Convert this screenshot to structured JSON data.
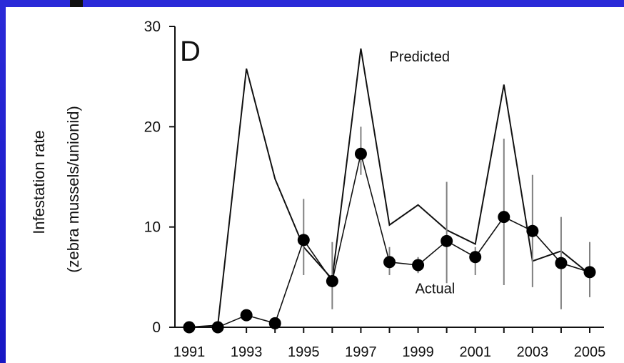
{
  "chart_data": {
    "type": "line",
    "panel_label": "D",
    "xlabel": "",
    "ylabel_line1": "Infestation rate",
    "ylabel_line2": "(zebra mussels/unionid)",
    "xlim": [
      1991,
      2005
    ],
    "ylim": [
      0,
      30
    ],
    "x_ticks": [
      1991,
      1992,
      1993,
      1994,
      1995,
      1996,
      1997,
      1998,
      1999,
      2000,
      2001,
      2002,
      2003,
      2004,
      2005
    ],
    "x_tick_labels": [
      "1991",
      "1993",
      "1995",
      "1997",
      "1999",
      "2001",
      "2003",
      "2005"
    ],
    "y_ticks": [
      0,
      10,
      20,
      30
    ],
    "y_tick_labels": [
      "0",
      "10",
      "20",
      "30"
    ],
    "grid": false,
    "series": [
      {
        "name": "Predicted",
        "style": "line",
        "x": [
          1991,
          1992,
          1993,
          1994,
          1995,
          1996,
          1997,
          1998,
          1999,
          2000,
          2001,
          2002,
          2003,
          2004,
          2005
        ],
        "values": [
          0,
          0.2,
          25.8,
          14.8,
          8.0,
          4.8,
          27.8,
          10.2,
          12.2,
          9.7,
          8.3,
          24.2,
          6.6,
          7.6,
          5.3
        ]
      },
      {
        "name": "Actual",
        "style": "line-markers-errorbars",
        "x": [
          1991,
          1992,
          1993,
          1994,
          1995,
          1996,
          1997,
          1998,
          1999,
          2000,
          2001,
          2002,
          2003,
          2004,
          2005
        ],
        "values": [
          0,
          0,
          1.2,
          0.4,
          8.7,
          4.6,
          17.3,
          6.5,
          6.2,
          8.6,
          7.0,
          11.0,
          9.6,
          6.4,
          5.5
        ],
        "err_low": [
          null,
          null,
          null,
          null,
          5.2,
          1.8,
          15.2,
          5.2,
          5.4,
          4.4,
          5.2,
          4.2,
          4.0,
          1.8,
          3.0
        ],
        "err_high": [
          null,
          null,
          null,
          null,
          12.8,
          8.5,
          20.0,
          8.0,
          7.0,
          14.5,
          8.0,
          18.8,
          15.2,
          11.0,
          8.5
        ]
      }
    ],
    "annotations": [
      {
        "text": "Predicted",
        "x": 1998.0,
        "y": 26.5
      },
      {
        "text": "Actual",
        "x": 1998.9,
        "y": 3.4
      }
    ],
    "colors": {
      "line": "#111111",
      "errorbar": "#808080",
      "marker": "#000000",
      "background": "#ffffff",
      "frame": "#1c1ccf"
    }
  }
}
